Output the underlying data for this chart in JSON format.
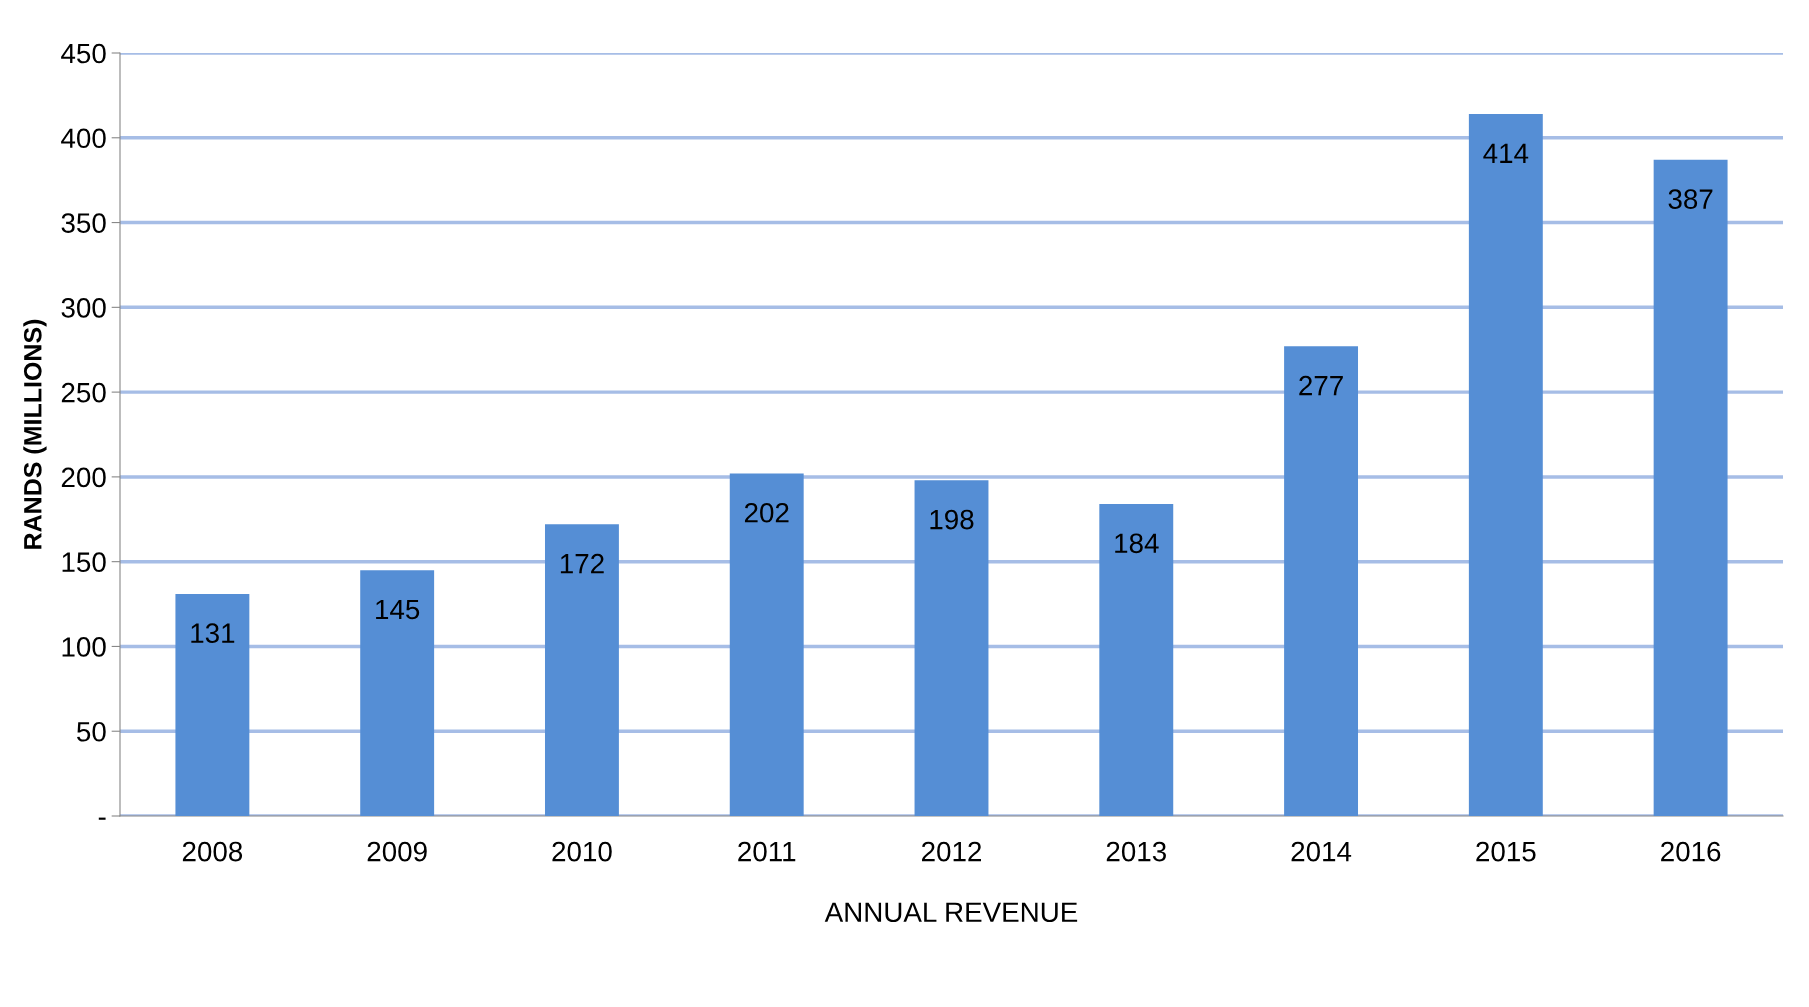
{
  "chart_data": {
    "type": "bar",
    "xlabel": "ANNUAL REVENUE",
    "ylabel": "RANDS (MILLIONS)",
    "categories": [
      "2008",
      "2009",
      "2010",
      "2011",
      "2012",
      "2013",
      "2014",
      "2015",
      "2016"
    ],
    "values": [
      131,
      145,
      172,
      202,
      198,
      184,
      277,
      414,
      387
    ],
    "color": "#558ed5",
    "ylim": [
      0,
      450
    ],
    "yticks": [
      {
        "value": 0,
        "label": "-"
      },
      50,
      100,
      150,
      200,
      250,
      300,
      350,
      400,
      450
    ],
    "grid": "y",
    "data_labels": true
  }
}
